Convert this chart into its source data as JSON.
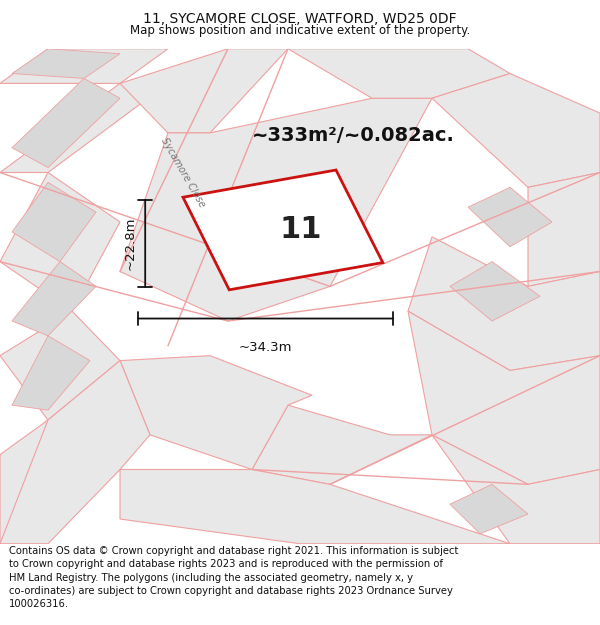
{
  "title": "11, SYCAMORE CLOSE, WATFORD, WD25 0DF",
  "subtitle": "Map shows position and indicative extent of the property.",
  "footer": "Contains OS data © Crown copyright and database right 2021. This information is subject\nto Crown copyright and database rights 2023 and is reproduced with the permission of\nHM Land Registry. The polygons (including the associated geometry, namely x, y\nco-ordinates) are subject to Crown copyright and database rights 2023 Ordnance Survey\n100026316.",
  "area_label": "~333m²/~0.082ac.",
  "number_label": "11",
  "width_label": "~34.3m",
  "height_label": "~22.8m",
  "street_label": "Sycamore Close",
  "bg_color": "#ffffff",
  "block_color": "#e8e8e8",
  "road_color": "#f0a0a0",
  "prop_color": "#cc1111",
  "dim_color": "#111111",
  "title_fontsize": 10,
  "subtitle_fontsize": 8.5,
  "footer_fontsize": 7.2,
  "area_fontsize": 14,
  "number_fontsize": 22,
  "dim_fontsize": 9.5,
  "street_fontsize": 7
}
